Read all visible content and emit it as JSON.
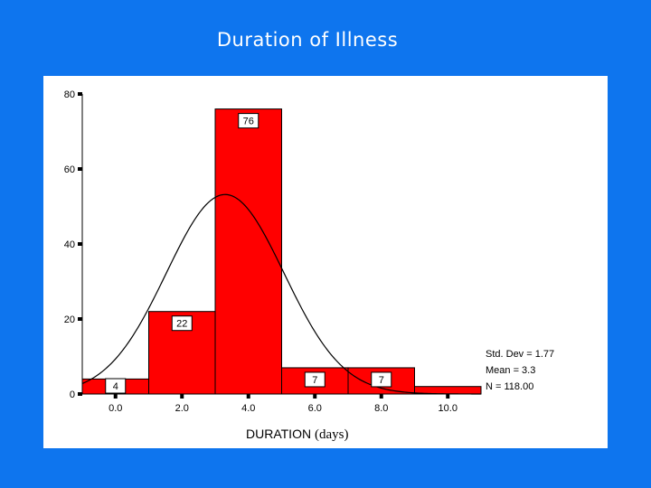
{
  "title": "Duration of Illness",
  "chart_data": {
    "type": "bar",
    "subtype": "histogram",
    "bins": [
      {
        "start": -1.0,
        "end": 1.0,
        "value": 4
      },
      {
        "start": 1.0,
        "end": 3.0,
        "value": 22
      },
      {
        "start": 3.0,
        "end": 5.0,
        "value": 76
      },
      {
        "start": 5.0,
        "end": 7.0,
        "value": 7
      },
      {
        "start": 7.0,
        "end": 9.0,
        "value": 7
      },
      {
        "start": 9.0,
        "end": 11.0,
        "value": 2
      }
    ],
    "bar_labels": [
      "4",
      "22",
      "76",
      "7",
      "7",
      ""
    ],
    "xlim": [
      -1.0,
      11.0
    ],
    "ylim": [
      0,
      80
    ],
    "x_ticks": [
      0,
      2,
      4,
      6,
      8,
      10
    ],
    "x_tick_labels": [
      "0.0",
      "2.0",
      "4.0",
      "6.0",
      "8.0",
      "10.0"
    ],
    "y_ticks": [
      0,
      20,
      40,
      60,
      80
    ],
    "y_tick_labels": [
      "0",
      "20",
      "40",
      "60",
      "80"
    ],
    "xlabel": "DURATION",
    "xlabel_unit": "(days)",
    "normal_curve": {
      "mean": 3.3,
      "std": 1.77,
      "n": 118,
      "bin_width": 2
    },
    "stats": [
      "Std. Dev = 1.77",
      "Mean = 3.3",
      "N = 118.00"
    ],
    "bar_color": "#ff0000",
    "curve_color": "#000000",
    "grid": false,
    "legend": "right"
  }
}
